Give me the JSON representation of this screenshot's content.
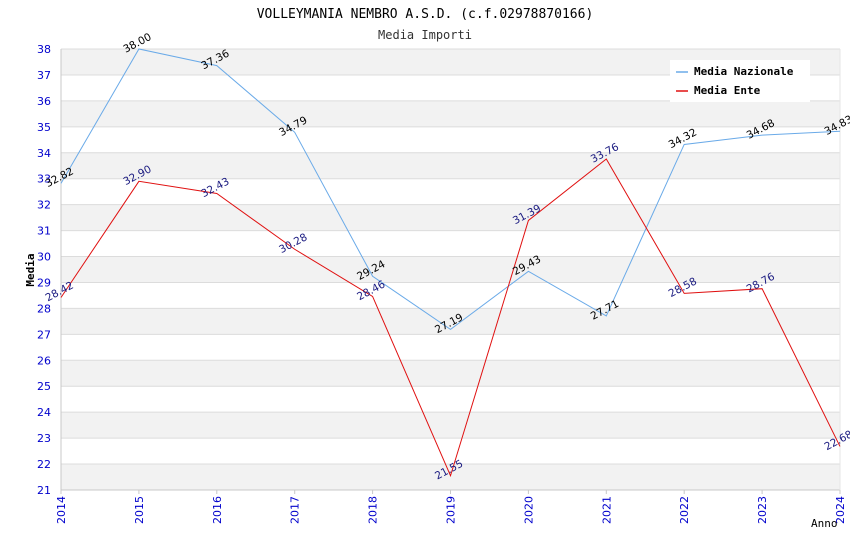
{
  "chart_data": {
    "type": "line",
    "title": "VOLLEYMANIA NEMBRO A.S.D. (c.f.02978870166)",
    "subtitle": "Media Importi",
    "xlabel": "Anno",
    "ylabel": "Media",
    "x": [
      "2014",
      "2015",
      "2016",
      "2017",
      "2018",
      "2019",
      "2020",
      "2021",
      "2022",
      "2023",
      "2024"
    ],
    "ylim": [
      21,
      38
    ],
    "yticks": [
      "21",
      "22",
      "23",
      "24",
      "25",
      "26",
      "27",
      "28",
      "29",
      "30",
      "31",
      "32",
      "33",
      "34",
      "35",
      "36",
      "37",
      "38"
    ],
    "legend_position": "top-right",
    "series": [
      {
        "name": "Media Nazionale",
        "color": "#6aaae8",
        "label_color": "#000000",
        "values": [
          32.82,
          38.0,
          37.36,
          34.79,
          29.24,
          27.19,
          29.43,
          27.71,
          34.32,
          34.68,
          34.83
        ],
        "labels": [
          "32.82",
          "38.00",
          "37.36",
          "34.79",
          "29.24",
          "27.19",
          "29.43",
          "27.71",
          "34.32",
          "34.68",
          "34.83"
        ]
      },
      {
        "name": "Media Ente",
        "color": "#e01010",
        "label_color": "#1a1a80",
        "values": [
          28.42,
          32.9,
          32.43,
          30.28,
          28.46,
          21.55,
          31.39,
          33.76,
          28.58,
          28.76,
          22.68
        ],
        "labels": [
          "28.42",
          "32.90",
          "32.43",
          "30.28",
          "28.46",
          "21.55",
          "31.39",
          "33.76",
          "28.58",
          "28.76",
          "22.68"
        ]
      }
    ]
  }
}
